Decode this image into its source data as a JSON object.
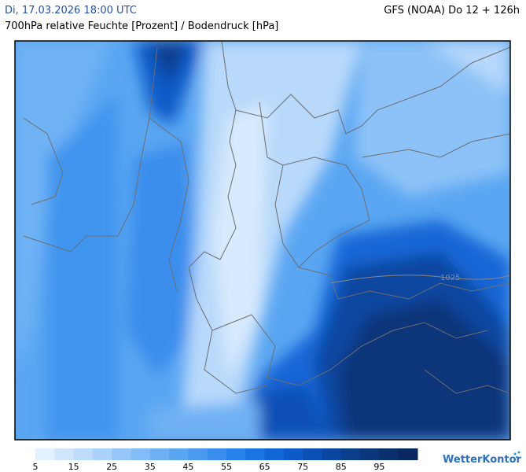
{
  "header": {
    "date": "Di, 17.03.2026 18:00 UTC",
    "model": "GFS (NOAA) Do 12 + 126h",
    "subtitle": "700hPa relative Feuchte [Prozent] / Bodendruck [hPa]"
  },
  "map": {
    "isobars": [
      {
        "label": "1025"
      }
    ]
  },
  "legend": {
    "ticks": [
      5,
      15,
      25,
      35,
      45,
      55,
      65,
      75,
      85,
      95
    ],
    "colors": [
      "#e2f0ff",
      "#d0e6fd",
      "#bedcfb",
      "#abd2fa",
      "#97c7f8",
      "#83bcf6",
      "#6fb1f4",
      "#5ba6f2",
      "#4a9aef",
      "#398eed",
      "#2981ea",
      "#1c74e2",
      "#1267d6",
      "#0c5bc8",
      "#0a50b5",
      "#0a46a0",
      "#0a3d8b",
      "#0a367b",
      "#0a2f6d",
      "#08285f"
    ]
  },
  "logo": "WetterKontor"
}
